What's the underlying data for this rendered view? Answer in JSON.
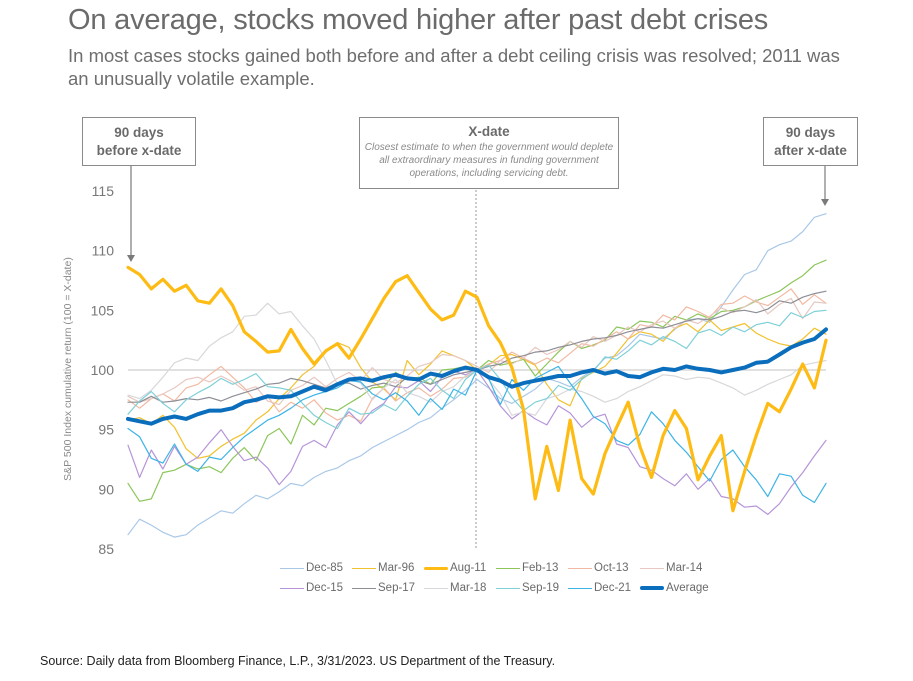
{
  "header": {
    "title": "On average, stocks moved higher after past debt crises",
    "subtitle": "In most cases stocks gained both before and after a debt ceiling crisis was resolved; 2011 was an unusually volatile example."
  },
  "annotations": {
    "before": {
      "line1": "90 days",
      "line2": "before x-date"
    },
    "xdate": {
      "head": "X-date",
      "desc": "Closest estimate to when the government would deplete all extraordinary measures in funding government operations, including servicing debt."
    },
    "after": {
      "line1": "90 days",
      "line2": "after x-date"
    }
  },
  "source": "Source: Daily data from Bloomberg Finance, L.P., 3/31/2023. US Department of the Treasury.",
  "chart_data": {
    "type": "line",
    "title": "On average, stocks moved higher after past debt crises",
    "xlabel": "",
    "ylabel": "S&P 500 Index cumulative return (100 = X-date)",
    "x_range_days": [
      -90,
      90
    ],
    "x_step_days": 3,
    "ylim": [
      85,
      115
    ],
    "yticks": [
      "85",
      "90",
      "95",
      "100",
      "105",
      "110",
      "115"
    ],
    "reference_line": 100,
    "xdate_marker": 0,
    "grid": false,
    "legend_position": "bottom",
    "series": [
      {
        "name": "Dec-85",
        "color": "#a9c8e8",
        "width": 1.2,
        "values": [
          86.2,
          87.5,
          87,
          86.4,
          86,
          86.2,
          87,
          87.6,
          88.2,
          88,
          88.8,
          89.5,
          89.2,
          89.8,
          90.5,
          90.3,
          91,
          91.5,
          91.8,
          92.4,
          92.8,
          93.5,
          94,
          94.5,
          95,
          95.6,
          96,
          96.8,
          97.5,
          98.3,
          99.2,
          98.5,
          97.6,
          97.2,
          97.8,
          98.4,
          99.3,
          99,
          98.6,
          99.4,
          100,
          101,
          101.2,
          102,
          103,
          102.8,
          102.6,
          103.4,
          104.2,
          104.3,
          104,
          105.3,
          106.7,
          108,
          108.4,
          110,
          110.5,
          110.8,
          111.6,
          112.8,
          113.1
        ]
      },
      {
        "name": "Mar-96",
        "color": "#f2c12e",
        "width": 1.2,
        "values": [
          95.8,
          96,
          95.5,
          96.2,
          95.2,
          93.4,
          92.6,
          92.8,
          93.6,
          94.2,
          94.7,
          95.8,
          96.5,
          97.6,
          98.5,
          99.6,
          100.3,
          101.5,
          102.3,
          101.9,
          100.2,
          99,
          98.4,
          97.5,
          100.8,
          99.6,
          100.5,
          101.6,
          101.2,
          100.8,
          100,
          100.4,
          101.2,
          101.3,
          100.9,
          100.4,
          98.8,
          97.5,
          97,
          99.3,
          99.8,
          100.3,
          101.4,
          102.6,
          103.2,
          103,
          102.4,
          103.5,
          103.9,
          103.2,
          104.2,
          103.3,
          103.6,
          103.9,
          103.1,
          102.6,
          102.2,
          102,
          102.6,
          103.5,
          103
        ]
      },
      {
        "name": "Aug-11",
        "color": "#fdbb14",
        "width": 3.2,
        "values": [
          108.6,
          108,
          106.8,
          107.6,
          106.6,
          107.1,
          105.8,
          105.6,
          106.8,
          105.4,
          103.2,
          102.4,
          101.5,
          101.6,
          103.4,
          101.8,
          100.5,
          101.6,
          102.2,
          101,
          102.6,
          104.3,
          106,
          107.4,
          107.9,
          106.5,
          105.1,
          104.2,
          104.6,
          106.6,
          106.1,
          103.7,
          102.3,
          100.2,
          96.7,
          89.2,
          93.6,
          89.9,
          95.8,
          90.9,
          89.6,
          93,
          95.2,
          97.3,
          93.6,
          91,
          94.5,
          96.6,
          95.1,
          90.8,
          92.8,
          94.5,
          88.2,
          91.5,
          94.5,
          97.2,
          96.5,
          98.4,
          100.5,
          98.5,
          102.5
        ]
      },
      {
        "name": "Feb-13",
        "color": "#8cc65a",
        "width": 1.2,
        "values": [
          90.5,
          89,
          89.2,
          91.4,
          91.6,
          92.1,
          91.7,
          91.9,
          91.4,
          92.6,
          93.5,
          92.4,
          94.5,
          95.1,
          93.8,
          96.2,
          95.4,
          96.8,
          96.6,
          97.2,
          97.8,
          98.5,
          98.6,
          99.8,
          99.2,
          99.4,
          98.8,
          100,
          100.1,
          100.3,
          100,
          100.8,
          100.4,
          100.6,
          100.9,
          99.5,
          100.5,
          101.5,
          102.4,
          101.8,
          102.1,
          102.5,
          103.6,
          103.4,
          104.1,
          104,
          103.6,
          104.5,
          104.2,
          104.7,
          104.3,
          104.9,
          105,
          105.3,
          105.8,
          106.2,
          106.6,
          107.3,
          107.9,
          108.8,
          109.2
        ]
      },
      {
        "name": "Oct-13",
        "color": "#f2b9a2",
        "width": 1.2,
        "values": [
          97.5,
          96.8,
          97.6,
          98,
          97.4,
          98.5,
          98.8,
          99.6,
          100.3,
          99.4,
          98.5,
          97.3,
          97.8,
          96.5,
          97.3,
          96.8,
          97.5,
          96.4,
          95.8,
          96.2,
          95.7,
          97.6,
          98.5,
          97.4,
          98.1,
          98.5,
          97.8,
          98.4,
          99.3,
          99.4,
          100,
          100.5,
          100.8,
          101.5,
          101,
          100.5,
          101,
          100.6,
          101.4,
          102.2,
          102,
          102.6,
          103.2,
          102.6,
          103.8,
          103.6,
          104.6,
          104.2,
          105.3,
          104.9,
          104.4,
          105.5,
          105.6,
          106.2,
          105.7,
          105.4,
          106.1,
          106.8,
          105.5,
          106.3,
          105.6
        ]
      },
      {
        "name": "Mar-14",
        "color": "#e8c8c0",
        "width": 1.2,
        "values": [
          97.8,
          97.3,
          97.6,
          98,
          98.5,
          99.2,
          99.4,
          99,
          99.5,
          99,
          98.3,
          98.6,
          97.4,
          97.1,
          98.3,
          98.7,
          99.4,
          98.6,
          99.3,
          99.8,
          99.1,
          100.2,
          99.2,
          98.9,
          99.5,
          100.3,
          100.6,
          101.3,
          101.2,
          100.8,
          100.3,
          99.8,
          100.8,
          100.5,
          101,
          101.9,
          101.3,
          101.7,
          102.4,
          101.9,
          102.8,
          102.4,
          102.9,
          103.6,
          103.2,
          103.8,
          104.1,
          103.5,
          104.2,
          103.9,
          104.5,
          105.2,
          104.8,
          105.3,
          105.9,
          104.7,
          105.5,
          106,
          104.3,
          105.7,
          105.6
        ]
      },
      {
        "name": "Dec-15",
        "color": "#b595d8",
        "width": 1.2,
        "values": [
          93.7,
          91,
          93.3,
          91.7,
          93.6,
          92.1,
          92.7,
          93.9,
          95,
          93.6,
          92.4,
          92.7,
          91.8,
          90.4,
          91.5,
          93.6,
          94.1,
          93.5,
          95.4,
          96.5,
          95.5,
          96.6,
          97.2,
          98.6,
          98.5,
          99.1,
          98.2,
          99.4,
          99.9,
          99.6,
          100,
          98.6,
          97,
          95.9,
          96.6,
          95.9,
          95.4,
          97,
          96.4,
          95.2,
          96,
          96.3,
          93.8,
          93.5,
          91.9,
          91.6,
          90.9,
          90.3,
          91.3,
          90,
          90.9,
          89.4,
          89.2,
          88.5,
          88.6,
          87.9,
          88.8,
          90.2,
          91.4,
          92.8,
          94.1
        ]
      },
      {
        "name": "Sep-17",
        "color": "#8e8e96",
        "width": 1.2,
        "values": [
          97.3,
          97.3,
          97.8,
          97.3,
          97.4,
          97.6,
          97.5,
          97.7,
          97.4,
          97.8,
          98.1,
          98.4,
          98.8,
          98.9,
          99.3,
          99.1,
          98.8,
          98.5,
          98.9,
          98.9,
          98.4,
          98.7,
          98.9,
          98.6,
          99.4,
          99.1,
          98.8,
          99.2,
          99.6,
          99.8,
          100,
          100.3,
          100.5,
          101,
          101.2,
          101.5,
          101.6,
          101.9,
          102.1,
          102.4,
          102.6,
          102.7,
          102.9,
          103.2,
          103.4,
          103.6,
          103.5,
          103.8,
          104.1,
          104.3,
          104.2,
          104.5,
          104.9,
          105,
          104.8,
          105.1,
          105.8,
          105.6,
          106.1,
          106.4,
          106.6
        ]
      },
      {
        "name": "Mar-18",
        "color": "#d8d8dc",
        "width": 1.2,
        "values": [
          97.9,
          97.6,
          98.3,
          99.4,
          100.6,
          101,
          100.8,
          102,
          102.7,
          103.2,
          104.5,
          104.6,
          105.6,
          104.7,
          104.9,
          103.7,
          102.6,
          100.8,
          98.8,
          99.3,
          98.9,
          97.5,
          98.5,
          99.2,
          98.1,
          97.8,
          97.3,
          98.2,
          98.6,
          99.5,
          100,
          99.2,
          98,
          96.2,
          96.5,
          96.2,
          97.6,
          97.9,
          98.4,
          98.2,
          97.8,
          97.3,
          97.6,
          98.2,
          98.6,
          99.1,
          99.6,
          99.5,
          99.2,
          99.4,
          99.3,
          98.9,
          98.5,
          97.9,
          98.3,
          98.8,
          99.2,
          99.6,
          100.4,
          100.6,
          100.8
        ]
      },
      {
        "name": "Sep-19",
        "color": "#7fd0d8",
        "width": 1.2,
        "values": [
          96.3,
          97.4,
          98.2,
          97.2,
          96.5,
          97.5,
          98.1,
          98.6,
          99.3,
          98.8,
          99.2,
          99.7,
          98.6,
          98.5,
          98.3,
          97.2,
          96.2,
          95.6,
          95.1,
          96.8,
          96.3,
          96.4,
          97.1,
          96.6,
          97.8,
          98.8,
          99.3,
          98.3,
          97.6,
          99.2,
          100,
          100.4,
          99.2,
          97.7,
          96.6,
          97.3,
          97.6,
          98.7,
          98.3,
          99.2,
          99.9,
          101.1,
          100.9,
          101.6,
          102.5,
          102.1,
          102.8,
          102.4,
          101.8,
          103.1,
          103.4,
          102.9,
          103.6,
          103.2,
          103.8,
          104,
          103.7,
          104.8,
          104.4,
          104.9,
          105
        ]
      },
      {
        "name": "Dec-21",
        "color": "#3db4e6",
        "width": 1.2,
        "values": [
          95.1,
          94.4,
          92.6,
          92.2,
          93.8,
          92.1,
          91.5,
          92.7,
          92.5,
          93.5,
          94.4,
          95.1,
          95.8,
          96.2,
          96.8,
          97.5,
          97.9,
          98.2,
          98.5,
          99.1,
          99,
          98,
          97.5,
          98.1,
          97.4,
          96.2,
          97.6,
          96.7,
          98.4,
          97.9,
          100,
          99.3,
          97.1,
          99.2,
          98.3,
          99.3,
          99.8,
          100.3,
          98.9,
          97.6,
          96.1,
          95.5,
          94.1,
          93.7,
          94.6,
          96.5,
          95.5,
          94.1,
          93.1,
          91.9,
          90.7,
          92.5,
          93.3,
          91.9,
          90.8,
          89.4,
          91.3,
          91.1,
          89.5,
          88.9,
          90.5
        ]
      },
      {
        "name": "Average",
        "color": "#0a6ebd",
        "width": 4,
        "values": [
          95.9,
          95.7,
          95.5,
          95.9,
          96.1,
          95.9,
          96.3,
          96.6,
          96.6,
          96.8,
          97.3,
          97.5,
          97.8,
          97.7,
          97.8,
          98.2,
          98.6,
          98.3,
          98.8,
          99.2,
          99.3,
          99.1,
          99.4,
          99.6,
          99.3,
          99.2,
          99.7,
          99.5,
          99.9,
          100.2,
          100,
          99.4,
          99.1,
          98.6,
          98.9,
          99.1,
          99.3,
          99.5,
          99.5,
          99.8,
          100,
          99.7,
          99.9,
          99.5,
          99.4,
          99.8,
          100.1,
          100,
          100.3,
          100.1,
          100,
          99.8,
          100,
          100.2,
          100.6,
          100.7,
          101.3,
          101.9,
          102.3,
          102.6,
          103.4
        ]
      }
    ]
  },
  "legend": {
    "rows": [
      [
        "Dec-85",
        "Mar-96",
        "Aug-11",
        "Feb-13",
        "Oct-13",
        "Mar-14"
      ],
      [
        "Dec-15",
        "Sep-17",
        "Mar-18",
        "Sep-19",
        "Dec-21",
        "Average"
      ]
    ]
  }
}
